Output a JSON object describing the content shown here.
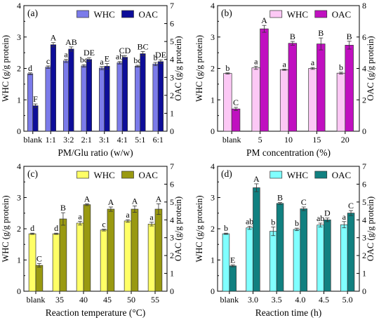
{
  "chart_data": [
    {
      "type": "bar",
      "panel_label": "(a)",
      "categories": [
        "blank",
        "1:1",
        "3:2",
        "2:1",
        "3:1",
        "4:1",
        "5:1",
        "6:1"
      ],
      "xlabel": "PM/Glu ratio (w/w)",
      "ylabel_left": "WHC (g/g protein)",
      "ylabel_right": "OAC (g/g protein)",
      "ylim_left": [
        0,
        4
      ],
      "ylim_right": [
        0,
        7
      ],
      "yticks_left": [
        0,
        1,
        2,
        3,
        4
      ],
      "yticks_right": [
        0,
        1,
        2,
        3,
        4,
        5,
        6,
        7
      ],
      "grid": false,
      "legend_position": "top-center",
      "series": [
        {
          "name": "WHC",
          "axis": "left",
          "color": "#7b7bea",
          "values": [
            1.83,
            2.04,
            2.24,
            2.08,
            2.01,
            2.18,
            2.07,
            2.14
          ],
          "errors": [
            0.03,
            0.04,
            0.05,
            0.04,
            0.05,
            0.04,
            0.03,
            0.05
          ],
          "labels": [
            "d",
            "c",
            "a",
            "bc",
            "a",
            "ab",
            "bc",
            "b"
          ]
        },
        {
          "name": "OAC",
          "axis": "right",
          "color": "#0d0d99",
          "values": [
            1.42,
            4.82,
            4.58,
            4.0,
            3.62,
            4.12,
            4.32,
            3.88
          ],
          "errors": [
            0.1,
            0.12,
            0.12,
            0.1,
            0.15,
            0.1,
            0.12,
            0.1
          ],
          "labels": [
            "F",
            "A",
            "AB",
            "DE",
            "E",
            "CD",
            "BC",
            "DE"
          ]
        }
      ]
    },
    {
      "type": "bar",
      "panel_label": "(b)",
      "categories": [
        "blank",
        "5",
        "10",
        "15",
        "20"
      ],
      "xlabel": "PM concentration (%)",
      "ylabel_left": "WHC (g/g protein)",
      "ylabel_right": "OAC (g/g protein)",
      "ylim_left": [
        0,
        4
      ],
      "ylim_right": [
        0,
        8
      ],
      "yticks_left": [
        0,
        1,
        2,
        3,
        4
      ],
      "yticks_right": [
        0,
        2,
        4,
        6,
        8
      ],
      "grid": false,
      "legend_position": "top-center",
      "series": [
        {
          "name": "WHC",
          "axis": "left",
          "color": "#fcc8f5",
          "values": [
            1.84,
            2.02,
            1.96,
            2.0,
            1.85
          ],
          "errors": [
            0.02,
            0.05,
            0.02,
            0.03,
            0.03
          ],
          "labels": [
            "b",
            "a",
            "a",
            "a",
            "b"
          ]
        },
        {
          "name": "OAC",
          "axis": "right",
          "color": "#c010c0",
          "values": [
            1.42,
            6.52,
            5.6,
            5.56,
            5.48
          ],
          "errors": [
            0.1,
            0.22,
            0.12,
            0.38,
            0.25
          ],
          "labels": [
            "C",
            "A",
            "B",
            "B",
            "B"
          ]
        }
      ]
    },
    {
      "type": "bar",
      "panel_label": "(c)",
      "categories": [
        "blank",
        "35",
        "40",
        "45",
        "50",
        "55"
      ],
      "xlabel": "Reaction temperature (°C)",
      "ylabel_left": "WHC (g/g protein)",
      "ylabel_right": "OAC (g/g protein)",
      "ylim_left": [
        0,
        4
      ],
      "ylim_right": [
        0,
        7
      ],
      "yticks_left": [
        0,
        1,
        2,
        3,
        4
      ],
      "yticks_right": [
        0,
        1,
        2,
        3,
        4,
        5,
        6,
        7
      ],
      "grid": false,
      "legend_position": "top-center",
      "series": [
        {
          "name": "WHC",
          "axis": "left",
          "color": "#ffff66",
          "values": [
            1.84,
            1.84,
            2.18,
            1.96,
            2.25,
            2.15
          ],
          "errors": [
            0.02,
            0.02,
            0.06,
            0.03,
            0.04,
            0.06
          ],
          "labels": [
            "d",
            "d",
            "a",
            "c",
            "a",
            "a"
          ]
        },
        {
          "name": "OAC",
          "axis": "right",
          "color": "#999911",
          "values": [
            1.45,
            4.05,
            4.85,
            4.6,
            4.6,
            4.6
          ],
          "errors": [
            0.1,
            0.35,
            0.05,
            0.12,
            0.18,
            0.3
          ],
          "labels": [
            "C",
            "B",
            "A",
            "A",
            "A",
            "A"
          ]
        }
      ]
    },
    {
      "type": "bar",
      "panel_label": "(d)",
      "categories": [
        "blank",
        "3.0",
        "3.5",
        "4.0",
        "4.5",
        "5.0"
      ],
      "xlabel": "Reaction time (h)",
      "ylabel_left": "WHC (g/g protein)",
      "ylabel_right": "OAC (g/g protein)",
      "ylim_left": [
        0,
        4
      ],
      "ylim_right": [
        0,
        7
      ],
      "yticks_left": [
        0,
        1,
        2,
        3,
        4
      ],
      "yticks_right": [
        0,
        1,
        2,
        3,
        4,
        5,
        6,
        7
      ],
      "grid": false,
      "legend_position": "top-center",
      "series": [
        {
          "name": "WHC",
          "axis": "left",
          "color": "#80ffff",
          "values": [
            1.84,
            2.03,
            1.92,
            1.98,
            2.12,
            2.13
          ],
          "errors": [
            0.02,
            0.05,
            0.14,
            0.04,
            0.06,
            0.1
          ],
          "labels": [
            "b",
            "ab",
            "b",
            "b",
            "ab",
            "a"
          ]
        },
        {
          "name": "OAC",
          "axis": "right",
          "color": "#118080",
          "values": [
            1.42,
            5.8,
            4.92,
            4.62,
            4.0,
            4.38
          ],
          "errors": [
            0.05,
            0.22,
            0.05,
            0.1,
            0.1,
            0.14
          ],
          "labels": [
            "E",
            "A",
            "B",
            "C",
            "D",
            "C"
          ]
        }
      ]
    }
  ]
}
